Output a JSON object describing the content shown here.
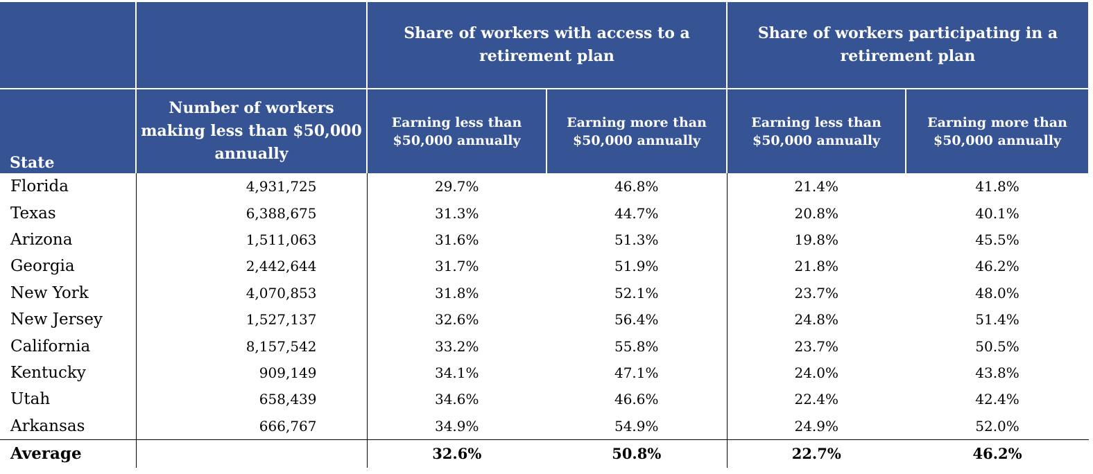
{
  "header": {
    "access_group": "Share of workers with access to a retirement plan",
    "participating_group": "Share of workers participating in a retirement plan",
    "state": "State",
    "num_workers": "Number of workers making less than $50,000 annually",
    "earning_less": "Earning less than $50,000 annually",
    "earning_more": "Earning more than $50,000 annually"
  },
  "rows": [
    {
      "state": "Florida",
      "workers": "4,931,725",
      "access_less": "29.7%",
      "access_more": "46.8%",
      "part_less": "21.4%",
      "part_more": "41.8%"
    },
    {
      "state": "Texas",
      "workers": "6,388,675",
      "access_less": "31.3%",
      "access_more": "44.7%",
      "part_less": "20.8%",
      "part_more": "40.1%"
    },
    {
      "state": "Arizona",
      "workers": "1,511,063",
      "access_less": "31.6%",
      "access_more": "51.3%",
      "part_less": "19.8%",
      "part_more": "45.5%"
    },
    {
      "state": "Georgia",
      "workers": "2,442,644",
      "access_less": "31.7%",
      "access_more": "51.9%",
      "part_less": "21.8%",
      "part_more": "46.2%"
    },
    {
      "state": "New York",
      "workers": "4,070,853",
      "access_less": "31.8%",
      "access_more": "52.1%",
      "part_less": "23.7%",
      "part_more": "48.0%"
    },
    {
      "state": "New Jersey",
      "workers": "1,527,137",
      "access_less": "32.6%",
      "access_more": "56.4%",
      "part_less": "24.8%",
      "part_more": "51.4%"
    },
    {
      "state": "California",
      "workers": "8,157,542",
      "access_less": "33.2%",
      "access_more": "55.8%",
      "part_less": "23.7%",
      "part_more": "50.5%"
    },
    {
      "state": "Kentucky",
      "workers": "909,149",
      "access_less": "34.1%",
      "access_more": "47.1%",
      "part_less": "24.0%",
      "part_more": "43.8%"
    },
    {
      "state": "Utah",
      "workers": "658,439",
      "access_less": "34.6%",
      "access_more": "46.6%",
      "part_less": "22.4%",
      "part_more": "42.4%"
    },
    {
      "state": "Arkansas",
      "workers": "666,767",
      "access_less": "34.9%",
      "access_more": "54.9%",
      "part_less": "24.9%",
      "part_more": "52.0%"
    }
  ],
  "average": {
    "label": "Average",
    "access_less": "32.6%",
    "access_more": "50.8%",
    "part_less": "22.7%",
    "part_more": "46.2%"
  },
  "colors": {
    "header_bg": "#365394",
    "header_text": "#ffffff"
  }
}
